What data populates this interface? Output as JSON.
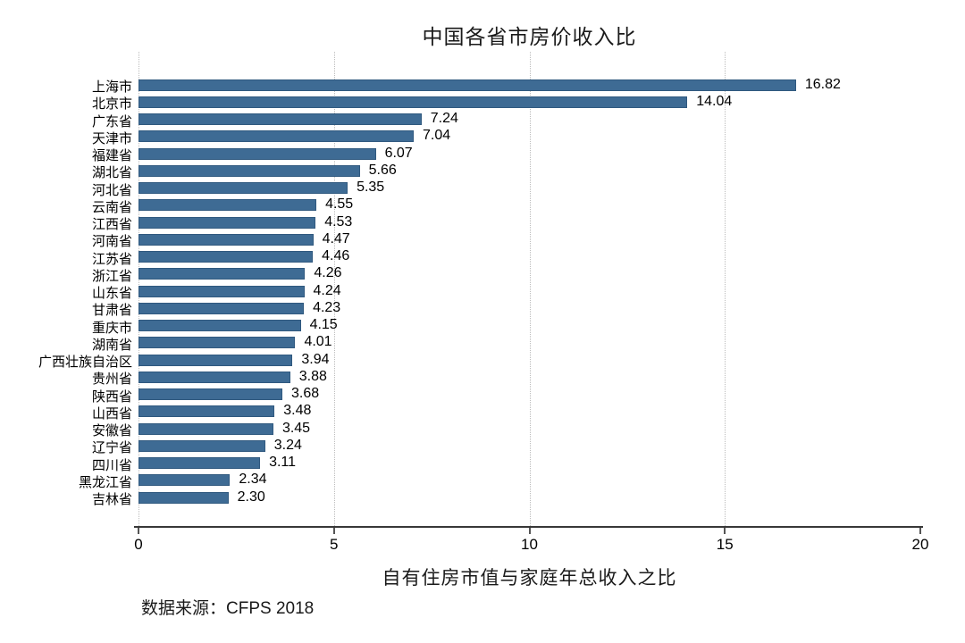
{
  "chart_data": {
    "type": "bar",
    "orientation": "horizontal",
    "title": "中国各省市房价收入比",
    "xlabel": "自有住房市值与家庭年总收入之比",
    "ylabel": "",
    "source": "数据来源：CFPS 2018",
    "categories": [
      "上海市",
      "北京市",
      "广东省",
      "天津市",
      "福建省",
      "湖北省",
      "河北省",
      "云南省",
      "江西省",
      "河南省",
      "江苏省",
      "浙江省",
      "山东省",
      "甘肃省",
      "重庆市",
      "湖南省",
      "广西壮族自治区",
      "贵州省",
      "陕西省",
      "山西省",
      "安徽省",
      "辽宁省",
      "四川省",
      "黑龙江省",
      "吉林省"
    ],
    "values": [
      16.82,
      14.04,
      7.24,
      7.04,
      6.07,
      5.66,
      5.35,
      4.55,
      4.53,
      4.47,
      4.46,
      4.26,
      4.24,
      4.23,
      4.15,
      4.01,
      3.94,
      3.88,
      3.68,
      3.48,
      3.45,
      3.24,
      3.11,
      2.34,
      2.3
    ],
    "value_labels": [
      "16.82",
      "14.04",
      "7.24",
      "7.04",
      "6.07",
      "5.66",
      "5.35",
      "4.55",
      "4.53",
      "4.47",
      "4.46",
      "4.26",
      "4.24",
      "4.23",
      "4.15",
      "4.01",
      "3.94",
      "3.88",
      "3.68",
      "3.48",
      "3.45",
      "3.24",
      "3.11",
      "2.34",
      "2.30"
    ],
    "xlim": [
      0,
      20
    ],
    "xticks": [
      0,
      5,
      10,
      15,
      20
    ],
    "xtick_labels": [
      "0",
      "5",
      "10",
      "15",
      "20"
    ],
    "gridline_ticks": [
      0,
      5,
      10,
      15
    ],
    "grid": "vertical-dotted",
    "legend": "none",
    "bar_color": "#3e6b94",
    "bar_border_color": "#30597f"
  }
}
